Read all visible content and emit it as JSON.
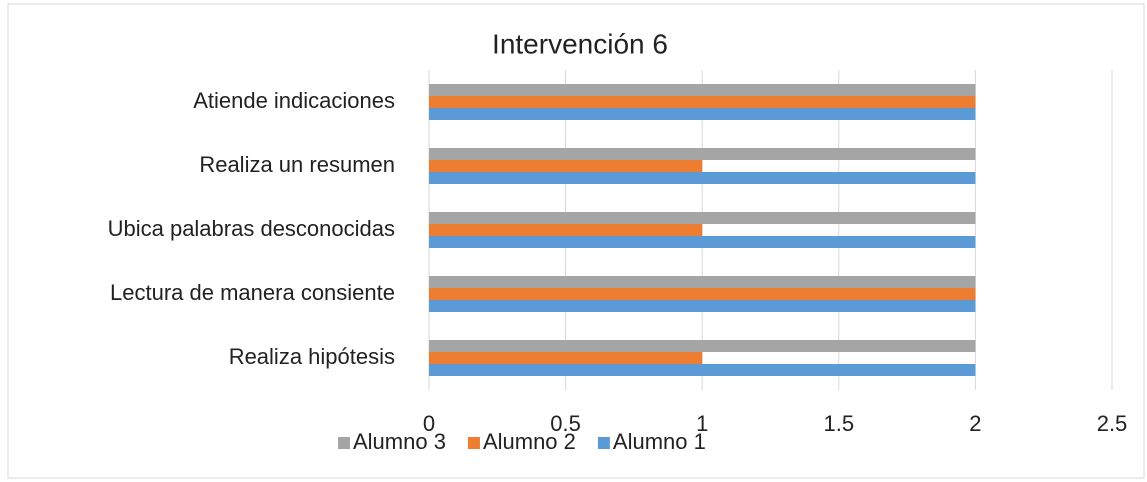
{
  "chart_data": {
    "type": "hbar",
    "title": "Intervención 6",
    "categories": [
      "Atiende indicaciones",
      "Realiza un resumen",
      "Ubica palabras desconocidas",
      "Lectura de manera consiente",
      "Realiza hipótesis"
    ],
    "series": [
      {
        "name": "Alumno 1",
        "color": "#5b9bd5",
        "values": [
          2,
          2,
          2,
          2,
          2
        ]
      },
      {
        "name": "Alumno 2",
        "color": "#ed7d31",
        "values": [
          2,
          1,
          1,
          2,
          1
        ]
      },
      {
        "name": "Alumno 3",
        "color": "#a5a5a5",
        "values": [
          2,
          2,
          2,
          2,
          2
        ]
      }
    ],
    "xlim": [
      0,
      2.5
    ],
    "xticks": [
      0,
      0.5,
      1,
      1.5,
      2,
      2.5
    ],
    "grid": true,
    "legend": "bottom"
  }
}
